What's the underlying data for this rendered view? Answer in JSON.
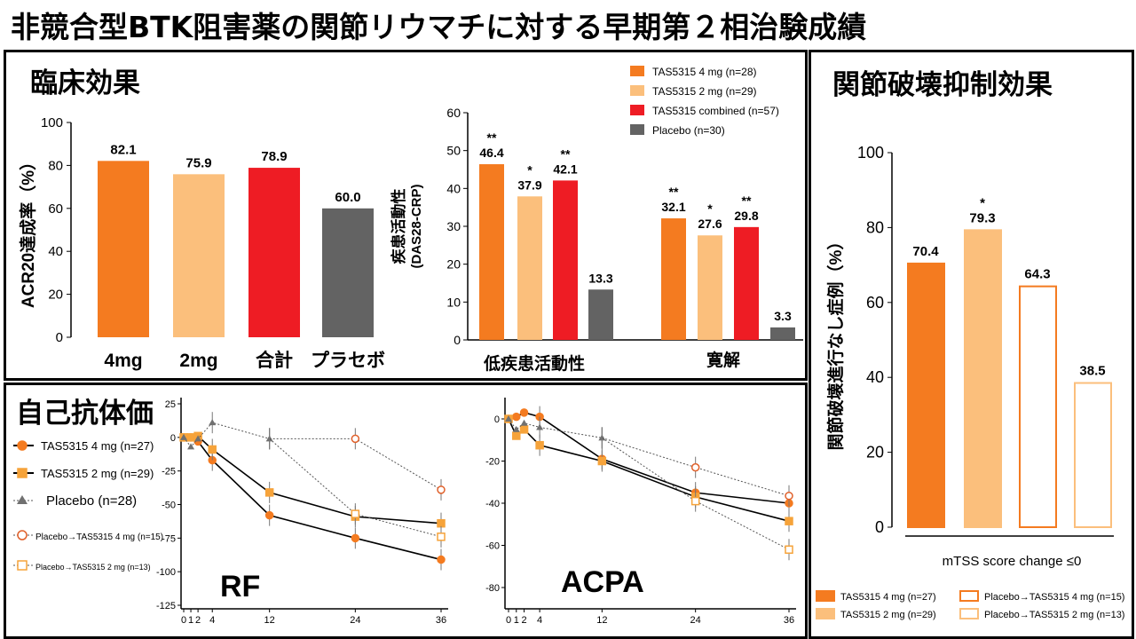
{
  "title": "非競合型BTK阻害薬の関節リウマチに対する早期第２相治験成績",
  "panels": {
    "clinical": "臨床効果",
    "joint": "関節破壊抑制効果",
    "autoantibody": "自己抗体価"
  },
  "colors": {
    "c4mg": "#f47b20",
    "c2mg": "#fbbf7c",
    "combined": "#ee1c24",
    "placebo": "#636363"
  },
  "chart_data": [
    {
      "id": "acr20",
      "type": "bar",
      "ylabel": "ACR20達成率（%）",
      "ylim": [
        0,
        100
      ],
      "yticks": [
        "0",
        "20",
        "40",
        "60",
        "80",
        "100"
      ],
      "categories": [
        "4mg",
        "2mg",
        "合計",
        "プラセボ"
      ],
      "values": [
        82.1,
        75.9,
        78.9,
        60.0
      ],
      "labels": [
        "82.1",
        "75.9",
        "78.9",
        "60.0"
      ],
      "colors": [
        "#f47b20",
        "#fbbf7c",
        "#ee1c24",
        "#636363"
      ]
    },
    {
      "id": "das28",
      "type": "bar",
      "ylabel": [
        "疾患活動性",
        "(DAS28-CRP)"
      ],
      "ylim": [
        0,
        60
      ],
      "yticks": [
        "0",
        "10",
        "20",
        "30",
        "40",
        "50",
        "60"
      ],
      "categories": [
        "低疾患活動性",
        "寛解"
      ],
      "legend": [
        "TAS5315 4 mg (n=28)",
        "TAS5315 2 mg (n=29)",
        "TAS5315 combined (n=57)",
        "Placebo (n=30)"
      ],
      "series": [
        {
          "name": "TAS5315 4 mg (n=28)",
          "values": [
            46.4,
            32.1
          ],
          "labels": [
            "46.4",
            "32.1"
          ],
          "sig": [
            "**",
            "**"
          ]
        },
        {
          "name": "TAS5315 2 mg (n=29)",
          "values": [
            37.9,
            27.6
          ],
          "labels": [
            "37.9",
            "27.6"
          ],
          "sig": [
            "*",
            "*"
          ]
        },
        {
          "name": "TAS5315 combined (n=57)",
          "values": [
            42.1,
            29.8
          ],
          "labels": [
            "42.1",
            "29.8"
          ],
          "sig": [
            "**",
            "**"
          ]
        },
        {
          "name": "Placebo (n=30)",
          "values": [
            13.3,
            3.3
          ],
          "labels": [
            "13.3",
            "3.3"
          ],
          "sig": [
            "",
            ""
          ]
        }
      ]
    },
    {
      "id": "mtss",
      "type": "bar",
      "ylabel": "関節破壊進行なし症例（%）",
      "xlabel": "mTSS score change ≤0",
      "ylim": [
        0,
        100
      ],
      "yticks": [
        "0",
        "20",
        "40",
        "60",
        "80",
        "100"
      ],
      "values": [
        70.4,
        79.3,
        64.3,
        38.5
      ],
      "labels": [
        "70.4",
        "79.3",
        "64.3",
        "38.5"
      ],
      "sig": [
        "",
        "*",
        "",
        ""
      ],
      "legend": [
        "TAS5315 4 mg (n=27)",
        "TAS5315 2 mg (n=29)",
        "Placebo→TAS5315 4 mg (n=15)",
        "Placebo→TAS5315 2 mg (n=13)"
      ]
    },
    {
      "id": "rf",
      "type": "line",
      "label": "RF",
      "x": [
        0,
        1,
        2,
        4,
        12,
        24,
        36
      ],
      "xticks": [
        "0",
        "1",
        "2",
        "4",
        "12",
        "24",
        "36"
      ],
      "ylim": [
        -125,
        25
      ],
      "yticks": [
        "25",
        "0",
        "-25",
        "-50",
        "-75",
        "-100",
        "-125"
      ],
      "legend": [
        "TAS5315 4 mg (n=27)",
        "TAS5315 2 mg (n=29)",
        "Placebo (n=28)",
        "Placebo→TAS5315 4 mg (n=15)",
        "Placebo→TAS5315 2 mg (n=13)"
      ],
      "series": [
        {
          "name": "TAS5315 4 mg (n=27)",
          "x": [
            0,
            1,
            2,
            4,
            12,
            24,
            36
          ],
          "y": [
            0,
            0,
            -3,
            -17,
            -58,
            -75,
            -91
          ]
        },
        {
          "name": "TAS5315 2 mg (n=29)",
          "x": [
            0,
            1,
            2,
            4,
            12,
            24,
            36
          ],
          "y": [
            0,
            0,
            1,
            -9,
            -41,
            -59,
            -64
          ]
        },
        {
          "name": "Placebo (n=28)",
          "x": [
            0,
            1,
            2,
            4,
            12
          ],
          "y": [
            0,
            -7,
            -1,
            11,
            -1
          ]
        },
        {
          "name": "Placebo→TAS5315 4 mg (n=15)",
          "x": [
            12,
            24,
            36
          ],
          "y": [
            -1,
            -1,
            -39
          ]
        },
        {
          "name": "Placebo→TAS5315 2 mg (n=13)",
          "x": [
            12,
            24,
            36
          ],
          "y": [
            -1,
            -57,
            -74
          ]
        }
      ]
    },
    {
      "id": "acpa",
      "type": "line",
      "label": "ACPA",
      "x": [
        0,
        1,
        2,
        4,
        12,
        24,
        36
      ],
      "xticks": [
        "0",
        "1",
        "2",
        "4",
        "12",
        "24",
        "36"
      ],
      "ylim": [
        -90,
        10
      ],
      "yticks": [
        "0",
        "-20",
        "-40",
        "-60",
        "-80"
      ],
      "series": [
        {
          "name": "TAS5315 4 mg (n=27)",
          "x": [
            0,
            1,
            2,
            4,
            12,
            24,
            36
          ],
          "y": [
            0,
            1,
            3,
            1,
            -19,
            -35,
            -40
          ]
        },
        {
          "name": "TAS5315 2 mg (n=29)",
          "x": [
            0,
            1,
            2,
            4,
            12,
            24,
            36
          ],
          "y": [
            0,
            -8,
            -5,
            -12.5,
            -20,
            -37,
            -48.5
          ]
        },
        {
          "name": "Placebo (n=28)",
          "x": [
            0,
            1,
            2,
            4,
            12
          ],
          "y": [
            0,
            -5,
            -2,
            -4,
            -9
          ]
        },
        {
          "name": "Placebo→TAS5315 4 mg (n=15)",
          "x": [
            12,
            24,
            36
          ],
          "y": [
            -9,
            -23,
            -36.5
          ]
        },
        {
          "name": "Placebo→TAS5315 2 mg (n=13)",
          "x": [
            12,
            24,
            36
          ],
          "y": [
            -9,
            -39,
            -62
          ]
        }
      ]
    }
  ]
}
